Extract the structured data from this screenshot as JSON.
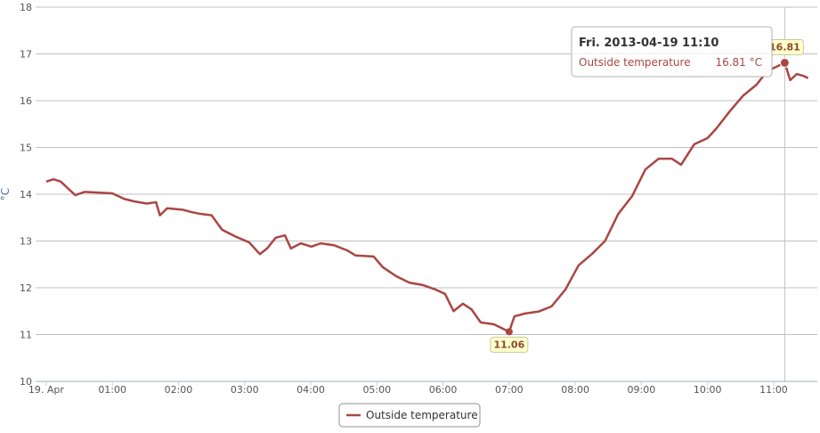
{
  "chart_data": {
    "type": "line",
    "y_label": "°C",
    "x": [
      0,
      0.11,
      0.22,
      0.31,
      0.44,
      0.58,
      0.71,
      1.0,
      1.18,
      1.32,
      1.52,
      1.66,
      1.72,
      1.83,
      2.06,
      2.19,
      2.33,
      2.5,
      2.66,
      2.87,
      3.07,
      3.23,
      3.34,
      3.47,
      3.61,
      3.7,
      3.85,
      4.01,
      4.15,
      4.35,
      4.55,
      4.68,
      4.95,
      5.09,
      5.29,
      5.49,
      5.69,
      5.89,
      6.03,
      6.16,
      6.3,
      6.43,
      6.57,
      6.77,
      7.0,
      7.08,
      7.24,
      7.44,
      7.64,
      7.85,
      8.05,
      8.25,
      8.45,
      8.65,
      8.86,
      9.06,
      9.26,
      9.46,
      9.6,
      9.8,
      10.0,
      10.13,
      10.34,
      10.54,
      10.74,
      10.9,
      11.167,
      11.25,
      11.35,
      11.45,
      11.52
    ],
    "series": [
      {
        "name": "Outside temperature",
        "color": "#aa4643",
        "values": [
          14.27,
          14.32,
          14.27,
          14.15,
          13.98,
          14.05,
          14.04,
          14.02,
          13.9,
          13.85,
          13.8,
          13.83,
          13.55,
          13.7,
          13.67,
          13.62,
          13.58,
          13.55,
          13.24,
          13.09,
          12.97,
          12.72,
          12.84,
          13.07,
          13.12,
          12.84,
          12.95,
          12.88,
          12.95,
          12.91,
          12.8,
          12.69,
          12.67,
          12.44,
          12.25,
          12.11,
          12.06,
          11.96,
          11.87,
          11.5,
          11.66,
          11.54,
          11.26,
          11.22,
          11.06,
          11.39,
          11.45,
          11.49,
          11.6,
          11.96,
          12.48,
          12.72,
          13.0,
          13.58,
          13.96,
          14.53,
          14.76,
          14.76,
          14.63,
          15.07,
          15.2,
          15.4,
          15.78,
          16.11,
          16.34,
          16.63,
          16.81,
          16.44,
          16.57,
          16.53,
          16.48
        ]
      }
    ],
    "labeled_points": [
      44,
      66
    ],
    "xlim": [
      -0.16,
      11.66
    ],
    "xticks": [
      {
        "value": 0,
        "label": "19. Apr"
      },
      {
        "value": 1,
        "label": "01:00"
      },
      {
        "value": 2,
        "label": "02:00"
      },
      {
        "value": 3,
        "label": "03:00"
      },
      {
        "value": 4,
        "label": "04:00"
      },
      {
        "value": 5,
        "label": "05:00"
      },
      {
        "value": 6,
        "label": "06:00"
      },
      {
        "value": 7,
        "label": "07:00"
      },
      {
        "value": 8,
        "label": "08:00"
      },
      {
        "value": 9,
        "label": "09:00"
      },
      {
        "value": 10,
        "label": "10:00"
      },
      {
        "value": 11,
        "label": "11:00"
      }
    ],
    "ylim": [
      10,
      18
    ],
    "yticks": [
      10,
      11,
      12,
      13,
      14,
      15,
      16,
      17,
      18
    ],
    "grid": true,
    "legend": "bottom",
    "tooltip": {
      "point": 66,
      "header": "Fri. 2013-04-19 11:10",
      "value": "16.81 °C"
    }
  }
}
